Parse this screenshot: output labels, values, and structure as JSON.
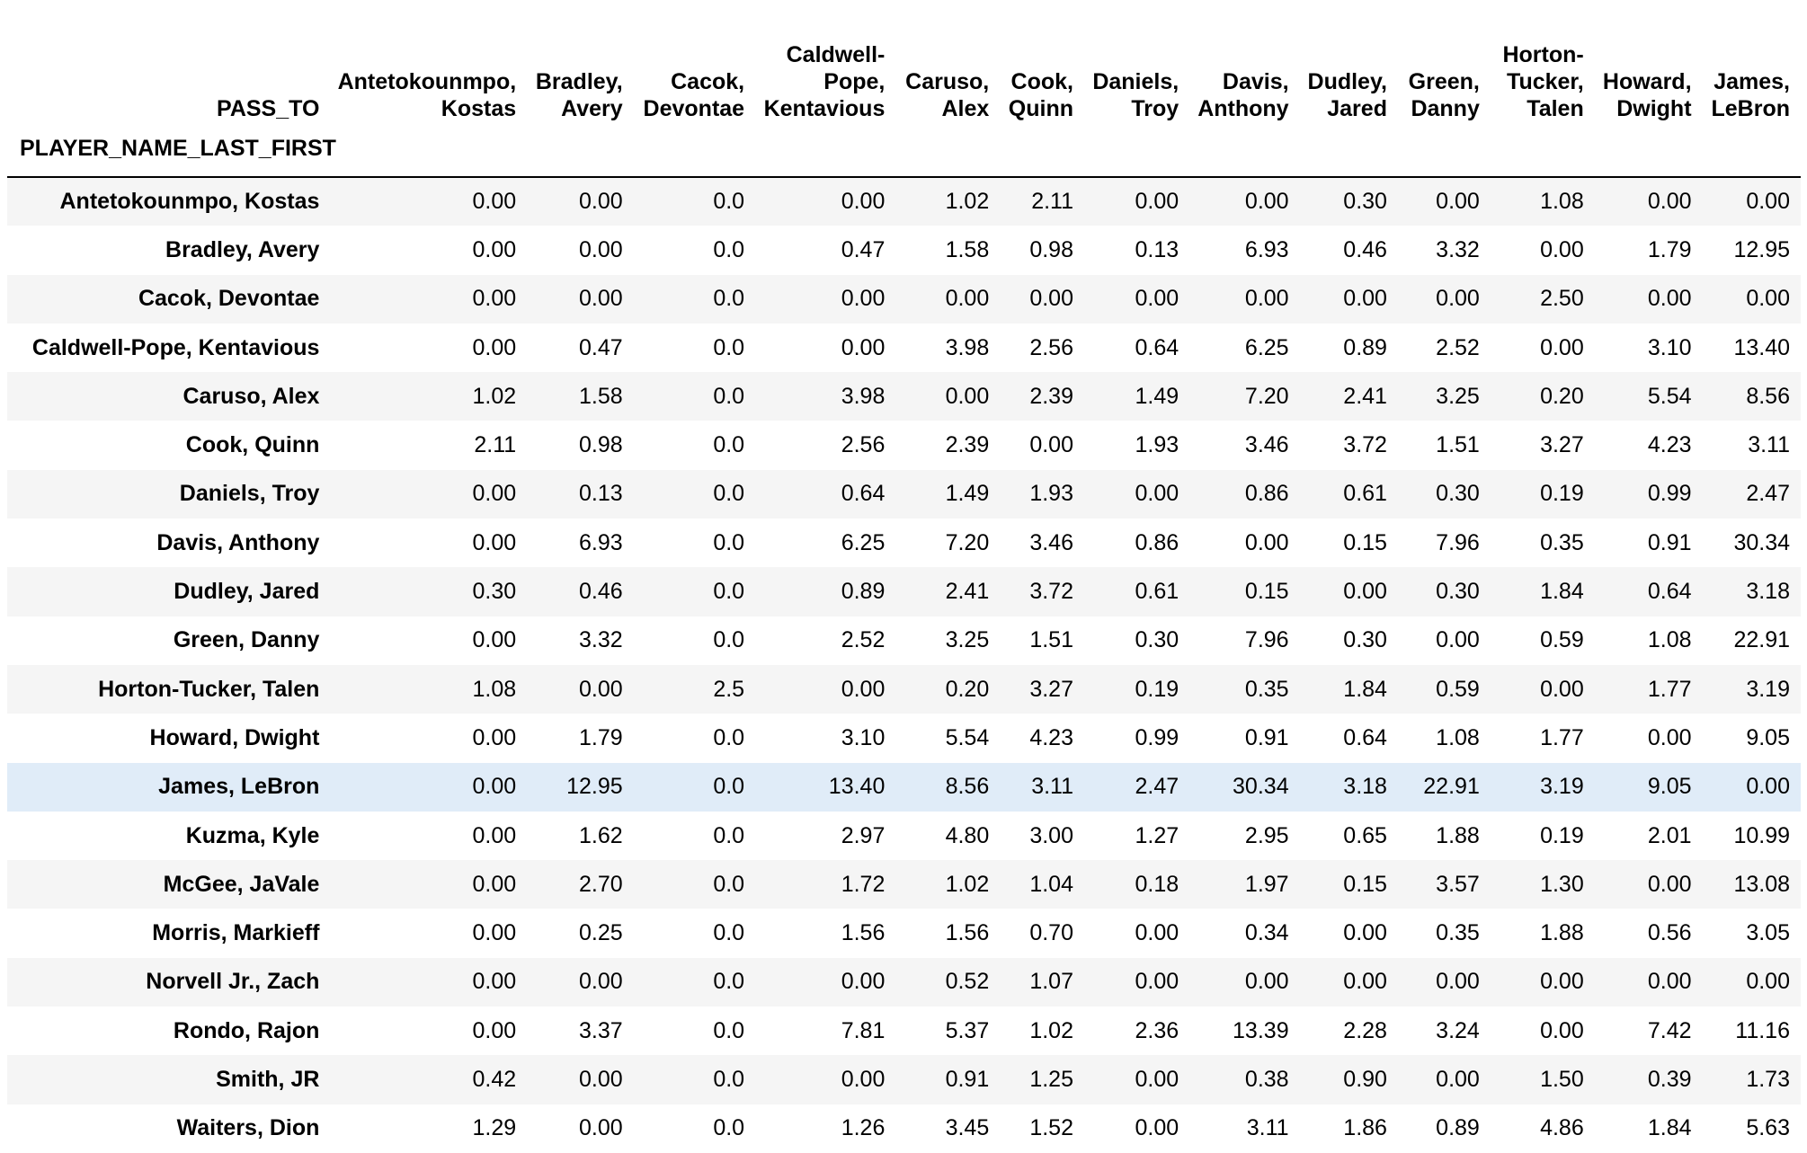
{
  "table": {
    "columns_name": "PASS_TO",
    "index_name": "PLAYER_NAME_LAST_FIRST",
    "columns": [
      [
        "Antetokounmpo,",
        "Kostas"
      ],
      [
        "Bradley,",
        "Avery"
      ],
      [
        "Cacok,",
        "Devontae"
      ],
      [
        "Caldwell-",
        "Pope,",
        "Kentavious"
      ],
      [
        "Caruso,",
        "Alex"
      ],
      [
        "Cook,",
        "Quinn"
      ],
      [
        "Daniels,",
        "Troy"
      ],
      [
        "Davis,",
        "Anthony"
      ],
      [
        "Dudley,",
        "Jared"
      ],
      [
        "Green,",
        "Danny"
      ],
      [
        "Horton-",
        "Tucker,",
        "Talen"
      ],
      [
        "Howard,",
        "Dwight"
      ],
      [
        "James,",
        "LeBron"
      ]
    ],
    "highlighted_row": "James, LeBron",
    "rows": [
      {
        "label": "Antetokounmpo, Kostas",
        "cells": [
          "0.00",
          "0.00",
          "0.0",
          "0.00",
          "1.02",
          "2.11",
          "0.00",
          "0.00",
          "0.30",
          "0.00",
          "1.08",
          "0.00",
          "0.00"
        ]
      },
      {
        "label": "Bradley, Avery",
        "cells": [
          "0.00",
          "0.00",
          "0.0",
          "0.47",
          "1.58",
          "0.98",
          "0.13",
          "6.93",
          "0.46",
          "3.32",
          "0.00",
          "1.79",
          "12.95"
        ]
      },
      {
        "label": "Cacok, Devontae",
        "cells": [
          "0.00",
          "0.00",
          "0.0",
          "0.00",
          "0.00",
          "0.00",
          "0.00",
          "0.00",
          "0.00",
          "0.00",
          "2.50",
          "0.00",
          "0.00"
        ]
      },
      {
        "label": "Caldwell-Pope, Kentavious",
        "cells": [
          "0.00",
          "0.47",
          "0.0",
          "0.00",
          "3.98",
          "2.56",
          "0.64",
          "6.25",
          "0.89",
          "2.52",
          "0.00",
          "3.10",
          "13.40"
        ]
      },
      {
        "label": "Caruso, Alex",
        "cells": [
          "1.02",
          "1.58",
          "0.0",
          "3.98",
          "0.00",
          "2.39",
          "1.49",
          "7.20",
          "2.41",
          "3.25",
          "0.20",
          "5.54",
          "8.56"
        ]
      },
      {
        "label": "Cook, Quinn",
        "cells": [
          "2.11",
          "0.98",
          "0.0",
          "2.56",
          "2.39",
          "0.00",
          "1.93",
          "3.46",
          "3.72",
          "1.51",
          "3.27",
          "4.23",
          "3.11"
        ]
      },
      {
        "label": "Daniels, Troy",
        "cells": [
          "0.00",
          "0.13",
          "0.0",
          "0.64",
          "1.49",
          "1.93",
          "0.00",
          "0.86",
          "0.61",
          "0.30",
          "0.19",
          "0.99",
          "2.47"
        ]
      },
      {
        "label": "Davis, Anthony",
        "cells": [
          "0.00",
          "6.93",
          "0.0",
          "6.25",
          "7.20",
          "3.46",
          "0.86",
          "0.00",
          "0.15",
          "7.96",
          "0.35",
          "0.91",
          "30.34"
        ]
      },
      {
        "label": "Dudley, Jared",
        "cells": [
          "0.30",
          "0.46",
          "0.0",
          "0.89",
          "2.41",
          "3.72",
          "0.61",
          "0.15",
          "0.00",
          "0.30",
          "1.84",
          "0.64",
          "3.18"
        ]
      },
      {
        "label": "Green, Danny",
        "cells": [
          "0.00",
          "3.32",
          "0.0",
          "2.52",
          "3.25",
          "1.51",
          "0.30",
          "7.96",
          "0.30",
          "0.00",
          "0.59",
          "1.08",
          "22.91"
        ]
      },
      {
        "label": "Horton-Tucker, Talen",
        "cells": [
          "1.08",
          "0.00",
          "2.5",
          "0.00",
          "0.20",
          "3.27",
          "0.19",
          "0.35",
          "1.84",
          "0.59",
          "0.00",
          "1.77",
          "3.19"
        ]
      },
      {
        "label": "Howard, Dwight",
        "cells": [
          "0.00",
          "1.79",
          "0.0",
          "3.10",
          "5.54",
          "4.23",
          "0.99",
          "0.91",
          "0.64",
          "1.08",
          "1.77",
          "0.00",
          "9.05"
        ]
      },
      {
        "label": "James, LeBron",
        "cells": [
          "0.00",
          "12.95",
          "0.0",
          "13.40",
          "8.56",
          "3.11",
          "2.47",
          "30.34",
          "3.18",
          "22.91",
          "3.19",
          "9.05",
          "0.00"
        ]
      },
      {
        "label": "Kuzma, Kyle",
        "cells": [
          "0.00",
          "1.62",
          "0.0",
          "2.97",
          "4.80",
          "3.00",
          "1.27",
          "2.95",
          "0.65",
          "1.88",
          "0.19",
          "2.01",
          "10.99"
        ]
      },
      {
        "label": "McGee, JaVale",
        "cells": [
          "0.00",
          "2.70",
          "0.0",
          "1.72",
          "1.02",
          "1.04",
          "0.18",
          "1.97",
          "0.15",
          "3.57",
          "1.30",
          "0.00",
          "13.08"
        ]
      },
      {
        "label": "Morris, Markieff",
        "cells": [
          "0.00",
          "0.25",
          "0.0",
          "1.56",
          "1.56",
          "0.70",
          "0.00",
          "0.34",
          "0.00",
          "0.35",
          "1.88",
          "0.56",
          "3.05"
        ]
      },
      {
        "label": "Norvell Jr., Zach",
        "cells": [
          "0.00",
          "0.00",
          "0.0",
          "0.00",
          "0.52",
          "1.07",
          "0.00",
          "0.00",
          "0.00",
          "0.00",
          "0.00",
          "0.00",
          "0.00"
        ]
      },
      {
        "label": "Rondo, Rajon",
        "cells": [
          "0.00",
          "3.37",
          "0.0",
          "7.81",
          "5.37",
          "1.02",
          "2.36",
          "13.39",
          "2.28",
          "3.24",
          "0.00",
          "7.42",
          "11.16"
        ]
      },
      {
        "label": "Smith, JR",
        "cells": [
          "0.42",
          "0.00",
          "0.0",
          "0.00",
          "0.91",
          "1.25",
          "0.00",
          "0.38",
          "0.90",
          "0.00",
          "1.50",
          "0.39",
          "1.73"
        ]
      },
      {
        "label": "Waiters, Dion",
        "cells": [
          "1.29",
          "0.00",
          "0.0",
          "1.26",
          "3.45",
          "1.52",
          "0.00",
          "3.11",
          "1.86",
          "0.89",
          "4.86",
          "1.84",
          "5.63"
        ]
      }
    ]
  },
  "colors": {
    "row_stripe": "#f5f5f5",
    "row_highlight": "#e0ecf8",
    "header_rule": "#000000"
  }
}
